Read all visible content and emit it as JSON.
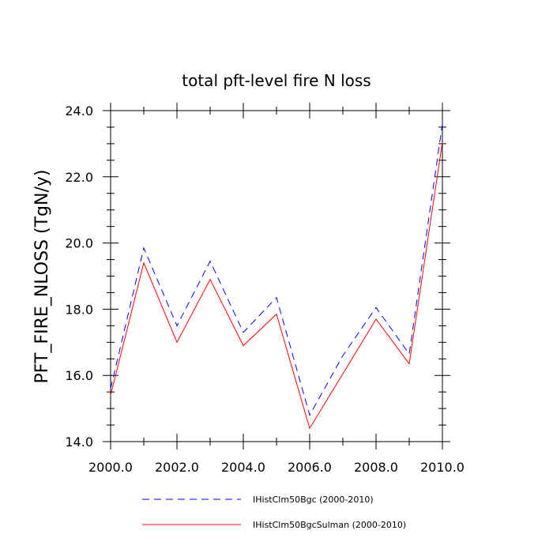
{
  "chart_data": {
    "type": "line",
    "title": "total pft-level fire N loss",
    "xlabel": "",
    "ylabel": "PFT_FIRE_NLOSS  (TgN/y)",
    "xlim": [
      2000,
      2010
    ],
    "ylim": [
      14,
      24
    ],
    "xticks": [
      2000,
      2002,
      2004,
      2006,
      2008,
      2010
    ],
    "xtick_labels": [
      "2000.0",
      "2002.0",
      "2004.0",
      "2006.0",
      "2008.0",
      "2010.0"
    ],
    "yticks": [
      14,
      16,
      18,
      20,
      22,
      24
    ],
    "ytick_labels": [
      "14.0",
      "16.0",
      "18.0",
      "20.0",
      "22.0",
      "24.0"
    ],
    "grid": false,
    "legend_position": "bottom",
    "x": [
      2000,
      2001,
      2002,
      2003,
      2004,
      2005,
      2006,
      2007,
      2008,
      2009,
      2010
    ],
    "series": [
      {
        "name": "IHistClm50Bgc (2000-2010)",
        "color": "#0000ff",
        "style": "dashed",
        "values": [
          15.6,
          19.85,
          17.5,
          19.45,
          17.3,
          18.35,
          14.8,
          16.6,
          18.05,
          16.65,
          23.6
        ]
      },
      {
        "name": "IHistClm50BgcSulman (2000-2010)",
        "color": "#ff0000",
        "style": "solid",
        "values": [
          15.4,
          19.4,
          17.0,
          18.9,
          16.9,
          17.85,
          14.4,
          16.05,
          17.7,
          16.35,
          23.05
        ]
      }
    ]
  }
}
